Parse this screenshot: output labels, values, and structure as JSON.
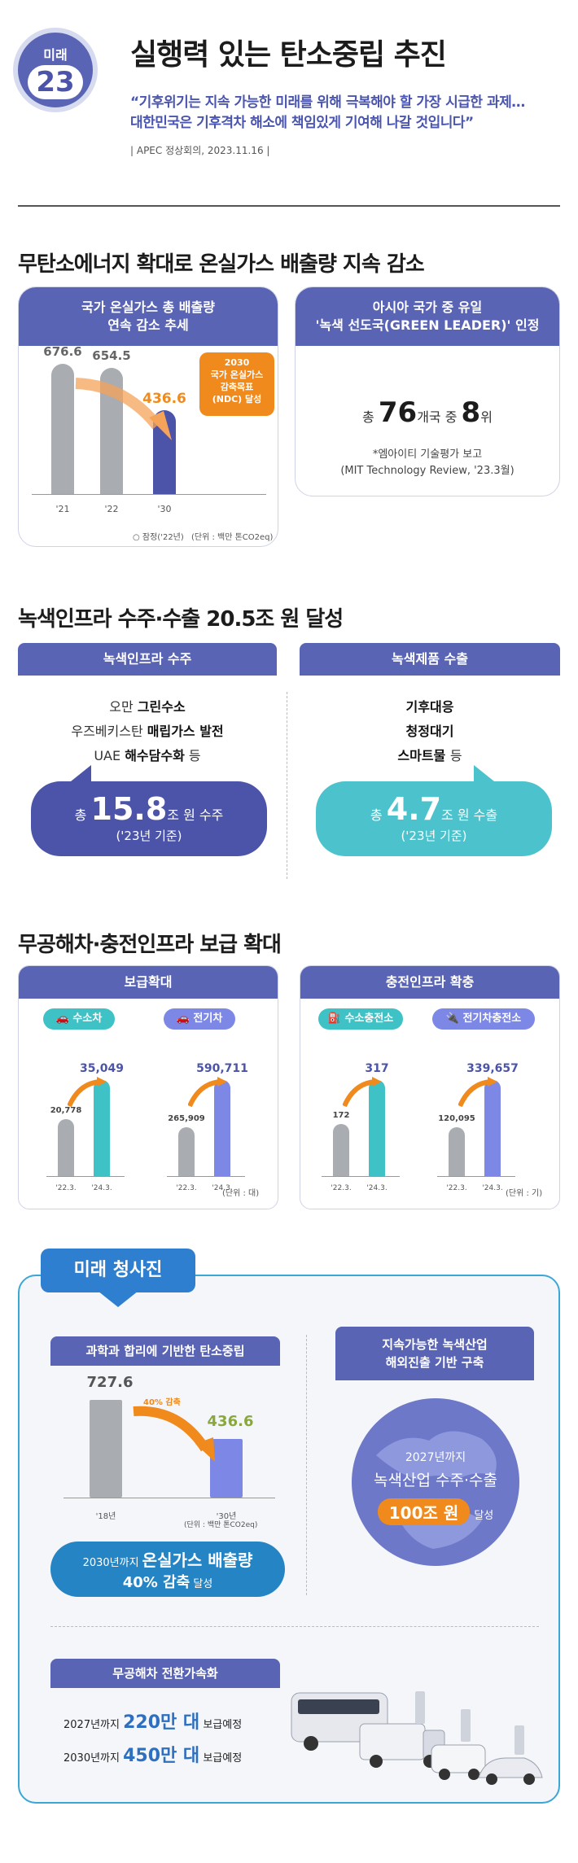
{
  "header": {
    "badge_top": "미래",
    "badge_num": "23",
    "title": "실행력 있는 탄소중립 추진",
    "quote_line1": "“기후위기는 지속 가능한 미래를 위해 극복해야 할 가장 시급한 과제…",
    "quote_line2": "대한민국은 기후격차 해소에 책임있게 기여해 나갈 것입니다”",
    "source": "| APEC 정상회의, 2023.11.16 |"
  },
  "section1": {
    "title": "무탄소에너지 확대로 온실가스 배출량 지속 감소",
    "left_head_l1": "국가 온실가스 총 배출량",
    "left_head_l2": "연속 감소 추세",
    "target_l1": "2030",
    "target_l2": "국가 온실가스",
    "target_l3": "감축목표",
    "target_l4": "(NDC) 달성",
    "chart_note_l": "○ 잠정('22년)",
    "chart_note_r": "(단위 : 백만 톤CO2eq)",
    "right_head_l1": "아시아 국가 중 유일",
    "right_head_l2": "'녹색 선도국(GREEN LEADER)' 인정",
    "rank_pre": "총",
    "rank_num1": "76",
    "rank_mid": "개국 중",
    "rank_num2": "8",
    "rank_post": "위",
    "rank_src1": "*엠아이티 기술평가 보고",
    "rank_src2": "(MIT Technology Review, '23.3월)"
  },
  "section2": {
    "title": "녹색인프라 수주·수출 20.5조 원 달성",
    "left_head": "녹색인프라 수주",
    "l_row1_pre": "오만",
    "l_row1_bold": "그린수소",
    "l_row2_pre": "우즈베키스탄",
    "l_row2_bold": "매립가스 발전",
    "l_row3_pre": "UAE",
    "l_row3_bold": "해수담수화",
    "l_row3_post": "등",
    "l_total_pre": "총",
    "l_total_num": "15.8",
    "l_total_post": "조 원 수주",
    "l_total_year": "('23년 기준)",
    "right_head": "녹색제품 수출",
    "r_row1": "기후대응",
    "r_row2": "청정대기",
    "r_row3_bold": "스마트물",
    "r_row3_post": "등",
    "r_total_pre": "총",
    "r_total_num": "4.7",
    "r_total_post": "조 원 수출",
    "r_total_year": "('23년 기준)"
  },
  "section3": {
    "title": "무공해차·충전인프라 보급 확대",
    "left_head": "보급확대",
    "right_head": "충전인프라 확충",
    "left_unit": "(단위 : 대)",
    "right_unit": "(단위 : 기)",
    "tick_a": "'22.3.",
    "tick_b": "'24.3.",
    "pill_h2car": "수소차",
    "pill_ev": "전기차",
    "pill_h2st": "수소충전소",
    "pill_evst": "전기차충전소"
  },
  "section4": {
    "ribbon": "미래 청사진",
    "left_head": "과학과 합리에 기반한 탄소중립",
    "cut_label": "40% 감축",
    "tick_18": "'18년",
    "tick_30": "'30년",
    "unit": "(단위 : 백만 톤CO2eq)",
    "goal_l1_pre": "2030년까지",
    "goal_l1_bold": "온실가스 배출량",
    "goal_l2_bold": "40% 감축",
    "goal_l2_post": "달성",
    "right_head_l1": "지속가능한 녹색산업",
    "right_head_l2": "해외진출 기반 구축",
    "globe_l1": "2027년까지",
    "globe_l2": "녹색산업 수주·수출",
    "globe_pill": "100조 원",
    "globe_post": "달성",
    "zev_head": "무공해차 전환가속화",
    "zev_l1_pre": "2027년까지",
    "zev_l1_bold": "220만 대",
    "zev_l1_post": "보급예정",
    "zev_l2_pre": "2030년까지",
    "zev_l2_bold": "450만 대",
    "zev_l2_post": "보급예정"
  },
  "chart_data": [
    {
      "type": "bar",
      "title": "국가 온실가스 총 배출량",
      "categories": [
        "'21",
        "'22",
        "'30"
      ],
      "values": [
        676.6,
        654.5,
        436.6
      ],
      "ylabel": "",
      "xlabel": "",
      "unit": "(단위 : 백만 톤CO2eq)",
      "ylim": [
        0,
        700
      ]
    },
    {
      "type": "bar",
      "categories": [
        "'22.3.",
        "'24.3."
      ],
      "series": [
        {
          "name": "수소차",
          "values": [
            20778,
            35049
          ]
        },
        {
          "name": "전기차",
          "values": [
            265909,
            590711
          ]
        }
      ]
    },
    {
      "type": "bar",
      "categories": [
        "'22.3.",
        "'24.3."
      ],
      "series": [
        {
          "name": "수소충전소",
          "values": [
            172,
            317
          ]
        },
        {
          "name": "전기차충전소",
          "values": [
            120095,
            339657
          ]
        }
      ]
    },
    {
      "type": "bar",
      "categories": [
        "'18년",
        "'30년"
      ],
      "values": [
        727.6,
        436.6
      ]
    }
  ]
}
